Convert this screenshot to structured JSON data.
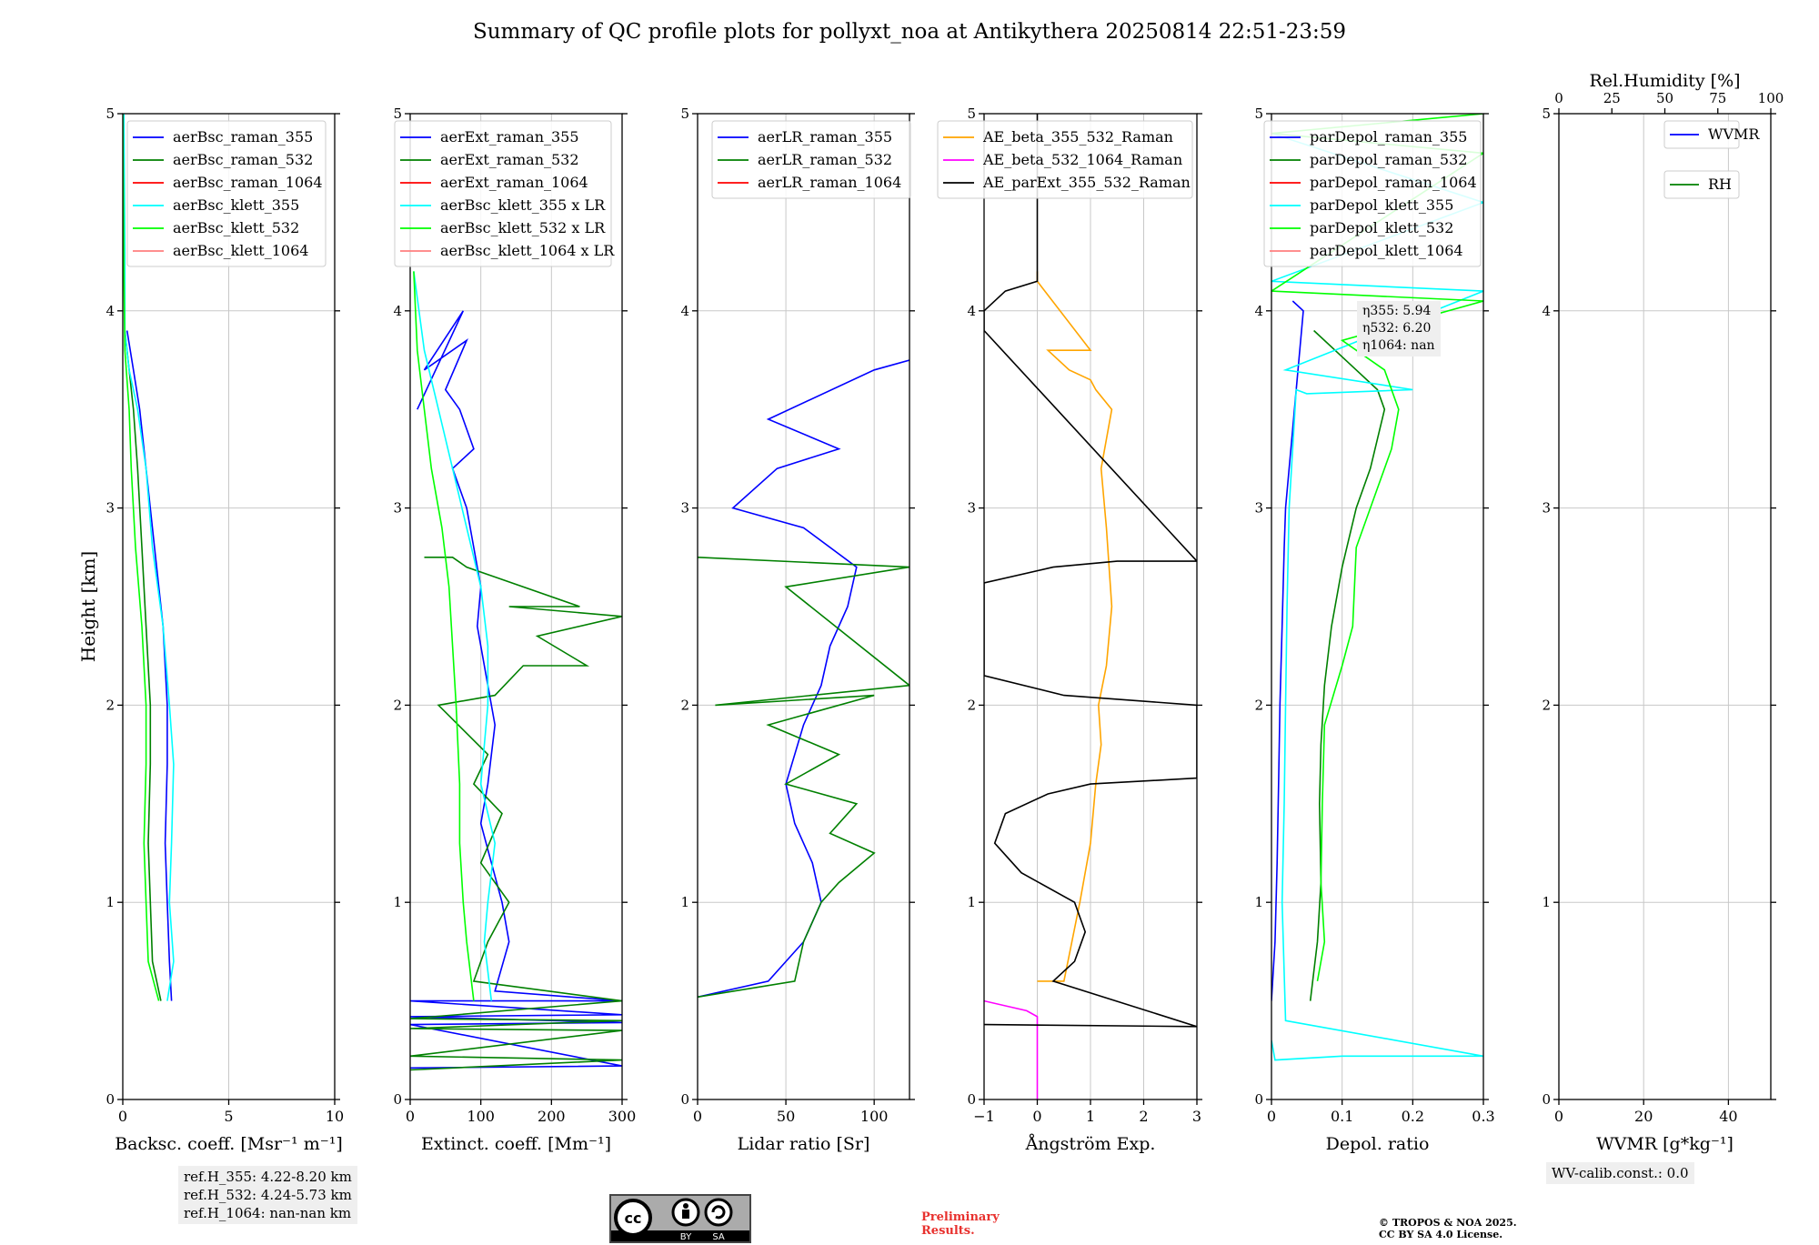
{
  "title": "Summary of QC profile plots for pollyxt_noa at Antikythera 20250814 22:51-23:59",
  "y_axis_label": "Height [km]",
  "refh_box": [
    "ref.H_355: 4.22-8.20 km",
    "ref.H_532: 4.24-5.73 km",
    "ref.H_1064: nan-nan km"
  ],
  "eta_box": [
    "η355: 5.94",
    "η532: 6.20",
    "η1064: nan"
  ],
  "wv_box": "WV-calib.const.: 0.0",
  "license": {
    "badge_left": "BY",
    "badge_right": "SA"
  },
  "preliminary": [
    "Preliminary",
    "Results."
  ],
  "copyright": [
    "© TROPOS & NOA 2025.",
    "CC BY SA 4.0 License."
  ],
  "colors": {
    "c355": "#0000ff",
    "c532": "#008000",
    "c1064": "#ff0000",
    "k355": "#00ffff",
    "k532": "#00ff00",
    "k1064": "#ff7f7f",
    "ae1": "#ffa500",
    "ae2": "#ff00ff",
    "ae3": "#000000"
  },
  "chart_data": [
    {
      "type": "line",
      "xlabel": "Backsc. coeff. [Msr⁻¹ m⁻¹]",
      "ylabel": "Height [km]",
      "xlim": [
        0,
        10
      ],
      "ylim": [
        0,
        5
      ],
      "xticks": [
        0,
        5,
        10
      ],
      "yticks": [
        0,
        1,
        2,
        3,
        4,
        5
      ],
      "grid": true,
      "legend_position": "top-right",
      "series": [
        {
          "name": "aerBsc_raman_355",
          "color": "#0000ff",
          "x": [
            2.3,
            2.2,
            2.1,
            2.0,
            2.1,
            2.1,
            1.9,
            1.5,
            1.1,
            0.8,
            0.5,
            0.2
          ],
          "y": [
            0.5,
            0.7,
            1.0,
            1.3,
            1.7,
            2.0,
            2.4,
            2.8,
            3.2,
            3.5,
            3.7,
            3.9
          ]
        },
        {
          "name": "aerBsc_raman_532",
          "color": "#008000",
          "x": [
            1.8,
            1.4,
            1.3,
            1.2,
            1.3,
            1.3,
            1.1,
            0.9,
            0.7,
            0.5,
            0.3,
            0.1
          ],
          "y": [
            0.5,
            0.7,
            1.0,
            1.3,
            1.7,
            2.0,
            2.4,
            2.8,
            3.2,
            3.5,
            3.7,
            3.9
          ]
        },
        {
          "name": "aerBsc_raman_1064",
          "color": "#ff0000",
          "x": [],
          "y": []
        },
        {
          "name": "aerBsc_klett_355",
          "color": "#00ffff",
          "x": [
            2.1,
            2.4,
            2.2,
            2.3,
            2.4,
            2.2,
            1.9,
            1.4,
            1.1,
            0.7,
            0.3,
            0.1,
            0.1,
            0.05
          ],
          "y": [
            0.5,
            0.7,
            1.0,
            1.3,
            1.7,
            2.0,
            2.4,
            2.8,
            3.2,
            3.5,
            3.7,
            3.9,
            4.3,
            5.0
          ]
        },
        {
          "name": "aerBsc_klett_532",
          "color": "#00ff00",
          "x": [
            1.7,
            1.2,
            1.1,
            1.0,
            1.1,
            1.1,
            0.9,
            0.6,
            0.4,
            0.3,
            0.1,
            0.05,
            0.0
          ],
          "y": [
            0.5,
            0.7,
            1.0,
            1.3,
            1.7,
            2.0,
            2.4,
            2.8,
            3.2,
            3.5,
            3.8,
            4.2,
            5.0
          ]
        },
        {
          "name": "aerBsc_klett_1064",
          "color": "#ff7f7f",
          "x": [],
          "y": []
        }
      ]
    },
    {
      "type": "line",
      "xlabel": "Extinct. coeff. [Mm⁻¹]",
      "ylabel": "",
      "xlim": [
        0,
        300
      ],
      "ylim": [
        0,
        5
      ],
      "xticks": [
        0,
        100,
        200,
        300
      ],
      "yticks": [
        0,
        1,
        2,
        3,
        4,
        5
      ],
      "grid": true,
      "legend_position": "top-left",
      "series": [
        {
          "name": "aerExt_raman_355",
          "color": "#0000ff",
          "x": [
            0,
            300,
            0,
            300,
            0,
            300,
            0,
            300,
            120,
            140,
            130,
            115,
            100,
            110,
            120,
            110,
            95,
            100,
            90,
            80,
            60,
            90,
            70,
            50,
            80,
            20,
            75,
            10
          ],
          "y": [
            0.16,
            0.17,
            0.38,
            0.39,
            0.42,
            0.43,
            0.5,
            0.5,
            0.55,
            0.8,
            1.0,
            1.2,
            1.4,
            1.6,
            1.9,
            2.1,
            2.4,
            2.6,
            2.8,
            3.0,
            3.2,
            3.3,
            3.5,
            3.6,
            3.85,
            3.7,
            4.0,
            3.5
          ]
        },
        {
          "name": "aerExt_raman_532",
          "color": "#008000",
          "x": [
            0,
            300,
            0,
            300,
            0,
            300,
            0,
            300,
            90,
            110,
            140,
            100,
            130,
            90,
            110,
            40,
            120,
            160,
            250,
            180,
            300,
            140,
            240,
            80,
            60,
            20
          ],
          "y": [
            0.15,
            0.2,
            0.22,
            0.35,
            0.36,
            0.4,
            0.41,
            0.5,
            0.6,
            0.8,
            1.0,
            1.2,
            1.45,
            1.6,
            1.75,
            2.0,
            2.05,
            2.2,
            2.2,
            2.35,
            2.45,
            2.5,
            2.5,
            2.7,
            2.75,
            2.75
          ]
        },
        {
          "name": "aerExt_raman_1064",
          "color": "#ff0000",
          "x": [],
          "y": []
        },
        {
          "name": "aerBsc_klett_355 x LR",
          "color": "#00ffff",
          "x": [
            115,
            105,
            110,
            120,
            100,
            110,
            110,
            100,
            80,
            60,
            40,
            20,
            5
          ],
          "y": [
            0.5,
            0.8,
            1.0,
            1.3,
            1.6,
            2.0,
            2.3,
            2.6,
            2.9,
            3.2,
            3.5,
            3.8,
            4.2
          ]
        },
        {
          "name": "aerBsc_klett_532 x LR",
          "color": "#00ff00",
          "x": [
            90,
            80,
            75,
            70,
            70,
            65,
            60,
            55,
            45,
            30,
            20,
            10,
            5
          ],
          "y": [
            0.5,
            0.8,
            1.0,
            1.3,
            1.6,
            2.0,
            2.3,
            2.6,
            2.9,
            3.2,
            3.5,
            3.8,
            4.2
          ]
        },
        {
          "name": "aerBsc_klett_1064 x LR",
          "color": "#ff7f7f",
          "x": [],
          "y": []
        }
      ]
    },
    {
      "type": "line",
      "xlabel": "Lidar ratio [Sr]",
      "ylabel": "",
      "xlim": [
        0,
        120
      ],
      "ylim": [
        0,
        5
      ],
      "xticks": [
        0,
        50,
        100
      ],
      "yticks": [
        0,
        1,
        2,
        3,
        4,
        5
      ],
      "grid": true,
      "legend_position": "top-right",
      "series": [
        {
          "name": "aerLR_raman_355",
          "color": "#0000ff",
          "x": [
            0,
            40,
            60,
            70,
            65,
            55,
            50,
            60,
            70,
            75,
            85,
            90,
            60,
            20,
            45,
            80,
            40,
            100,
            120
          ],
          "y": [
            0.52,
            0.6,
            0.8,
            1.0,
            1.2,
            1.4,
            1.6,
            1.9,
            2.1,
            2.3,
            2.5,
            2.7,
            2.9,
            3.0,
            3.2,
            3.3,
            3.45,
            3.7,
            3.75
          ]
        },
        {
          "name": "aerLR_raman_532",
          "color": "#008000",
          "x": [
            0,
            55,
            60,
            70,
            80,
            100,
            75,
            90,
            50,
            80,
            40,
            100,
            10,
            120,
            50,
            120,
            0
          ],
          "y": [
            0.52,
            0.6,
            0.8,
            1.0,
            1.1,
            1.25,
            1.35,
            1.5,
            1.6,
            1.75,
            1.9,
            2.05,
            2.0,
            2.1,
            2.6,
            2.7,
            2.75
          ]
        },
        {
          "name": "aerLR_raman_1064",
          "color": "#ff0000",
          "x": [],
          "y": []
        }
      ]
    },
    {
      "type": "line",
      "xlabel": "Ångström Exp.",
      "ylabel": "",
      "xlim": [
        -1,
        3
      ],
      "ylim": [
        0,
        5
      ],
      "xticks": [
        -1,
        0,
        1,
        2,
        3
      ],
      "yticks": [
        0,
        1,
        2,
        3,
        4,
        5
      ],
      "grid": true,
      "legend_position": "top-left",
      "series": [
        {
          "name": "AE_beta_355_532_Raman",
          "color": "#ffa500",
          "x": [
            0.0,
            0.5,
            0.8,
            1.0,
            1.1,
            1.2,
            1.15,
            1.3,
            1.4,
            1.3,
            1.2,
            1.4,
            1.1,
            1.0,
            0.6,
            0.2,
            1.0,
            0.0,
            0.0
          ],
          "y": [
            0.6,
            0.6,
            1.0,
            1.3,
            1.6,
            1.8,
            2.0,
            2.2,
            2.5,
            2.9,
            3.2,
            3.5,
            3.6,
            3.65,
            3.7,
            3.8,
            3.8,
            4.15,
            4.2
          ]
        },
        {
          "name": "AE_beta_532_1064_Raman",
          "color": "#ff00ff",
          "x": [
            -1.0,
            -0.2,
            0.0,
            0.0
          ],
          "y": [
            0.5,
            0.45,
            0.42,
            0.0
          ]
        },
        {
          "name": "AE_parExt_355_532_Raman",
          "color": "#000000",
          "x": [
            -1.0,
            3.0,
            3.0,
            0.3,
            0.7,
            0.9,
            0.7,
            -0.3,
            -0.8,
            -0.6,
            0.2,
            1.0,
            3.0,
            3.0,
            0.5,
            -1.0,
            -1.0,
            0.3,
            1.5,
            3.0,
            -1.0,
            -1.0,
            -0.6,
            0.0,
            0.0,
            0.0
          ],
          "y": [
            0.38,
            0.37,
            0.37,
            0.6,
            0.7,
            0.85,
            1.0,
            1.15,
            1.3,
            1.45,
            1.55,
            1.6,
            1.63,
            2.0,
            2.05,
            2.15,
            2.62,
            2.7,
            2.73,
            2.73,
            3.9,
            4.0,
            4.1,
            4.15,
            4.6,
            5.0
          ]
        }
      ]
    },
    {
      "type": "line",
      "xlabel": "Depol. ratio",
      "ylabel": "",
      "xlim": [
        0,
        0.3
      ],
      "ylim": [
        0,
        5
      ],
      "xticks": [
        0.0,
        0.1,
        0.2,
        0.3
      ],
      "yticks": [
        0,
        1,
        2,
        3,
        4,
        5
      ],
      "grid": true,
      "legend_position": "top-left",
      "series": [
        {
          "name": "parDepol_raman_355",
          "color": "#0000ff",
          "x": [
            0.0,
            0.005,
            0.008,
            0.01,
            0.012,
            0.015,
            0.018,
            0.02,
            0.025,
            0.03,
            0.035,
            0.04,
            0.045,
            0.03
          ],
          "y": [
            0.5,
            0.8,
            1.2,
            1.6,
            2.0,
            2.4,
            2.8,
            3.0,
            3.2,
            3.4,
            3.6,
            3.8,
            4.0,
            4.05
          ]
        },
        {
          "name": "parDepol_raman_532",
          "color": "#008000",
          "x": [
            0.055,
            0.065,
            0.07,
            0.068,
            0.07,
            0.075,
            0.085,
            0.1,
            0.12,
            0.14,
            0.16,
            0.15,
            0.12,
            0.06
          ],
          "y": [
            0.5,
            0.8,
            1.1,
            1.5,
            1.8,
            2.1,
            2.4,
            2.7,
            3.0,
            3.2,
            3.5,
            3.6,
            3.7,
            3.9
          ]
        },
        {
          "name": "parDepol_raman_1064",
          "color": "#ff0000",
          "x": [],
          "y": []
        },
        {
          "name": "parDepol_klett_355",
          "color": "#00ffff",
          "x": [
            0.0,
            0.005,
            0.1,
            0.3,
            0.02,
            0.015,
            0.018,
            0.02,
            0.022,
            0.025,
            0.03,
            0.035,
            0.05,
            0.2,
            0.02,
            0.3,
            0.0,
            0.3,
            0.0
          ],
          "y": [
            0.3,
            0.2,
            0.22,
            0.22,
            0.4,
            1.0,
            1.5,
            2.0,
            2.5,
            3.0,
            3.3,
            3.6,
            3.58,
            3.6,
            3.7,
            4.1,
            4.15,
            4.55,
            4.9
          ]
        },
        {
          "name": "parDepol_klett_532",
          "color": "#00ff00",
          "x": [
            0.065,
            0.075,
            0.07,
            0.072,
            0.075,
            0.1,
            0.115,
            0.12,
            0.15,
            0.17,
            0.18,
            0.16,
            0.1,
            0.3,
            0.0,
            0.3,
            0.0,
            0.3
          ],
          "y": [
            0.6,
            0.8,
            1.1,
            1.5,
            1.9,
            2.2,
            2.4,
            2.8,
            3.1,
            3.3,
            3.5,
            3.7,
            3.85,
            4.05,
            4.1,
            4.8,
            4.9,
            5.0
          ]
        },
        {
          "name": "parDepol_klett_1064",
          "color": "#ff7f7f",
          "x": [],
          "y": []
        }
      ]
    },
    {
      "type": "line",
      "xlabel": "WVMR [g*kg⁻¹]",
      "ylabel": "",
      "top_xlabel": "Rel.Humidity [%]",
      "xlim": [
        0,
        50
      ],
      "ylim": [
        0,
        5
      ],
      "xticks": [
        0,
        20,
        40
      ],
      "top_xticks": [
        0,
        25,
        50,
        75,
        100
      ],
      "yticks": [
        0,
        1,
        2,
        3,
        4,
        5
      ],
      "grid": true,
      "legend_position": "top-right",
      "series": [
        {
          "name": "WVMR",
          "color": "#0000ff",
          "x": [],
          "y": []
        },
        {
          "name": "RH",
          "color": "#008000",
          "x": [],
          "y": []
        }
      ]
    }
  ]
}
